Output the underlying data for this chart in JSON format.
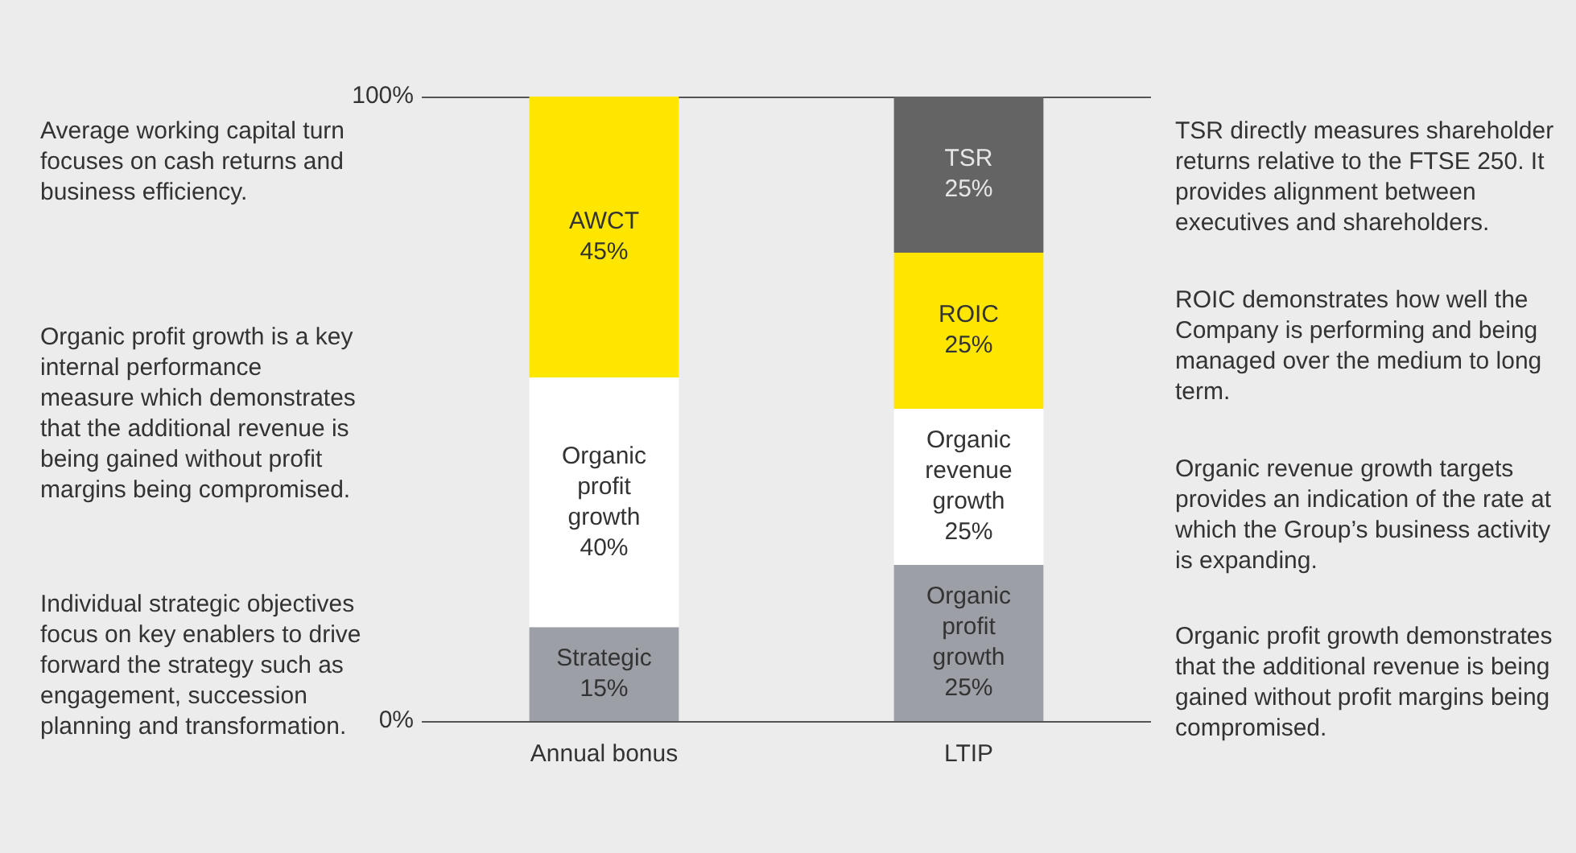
{
  "chart_data": {
    "type": "bar",
    "stacked": true,
    "categories": [
      "Annual bonus",
      "LTIP"
    ],
    "series": [
      {
        "colors": [
          "#9c9fa6",
          "#9c9fa6"
        ],
        "values": [
          0.15,
          0.25
        ],
        "value_labels": [
          "Strategic 15%",
          "Organic profit growth 25%"
        ]
      },
      {
        "colors": [
          "#ffffff",
          "#ffffff"
        ],
        "values": [
          0.4,
          0.25
        ],
        "value_labels": [
          "Organic profit growth 40%",
          "Organic revenue growth 25%"
        ]
      },
      {
        "colors": [
          "#ffe600",
          "#ffe600"
        ],
        "values": [
          0.45,
          0.25
        ],
        "value_labels": [
          "AWCT 45%",
          "ROIC 25%"
        ]
      },
      {
        "colors": [
          null,
          "#646464"
        ],
        "values": [
          null,
          0.25
        ],
        "value_labels": [
          null,
          "TSR 25%"
        ]
      }
    ],
    "ylim": [
      0,
      1
    ],
    "yticks": [
      {
        "value": 0,
        "label": "0%"
      },
      {
        "value": 1,
        "label": "100%"
      }
    ],
    "legend": false,
    "annotations": [
      "Average working capital turn focuses on cash returns and business efficiency.",
      "Organic profit growth is a key internal performance measure which demonstrates that the additional revenue is being gained without profit margins being compromised.",
      "Individual strategic objectives focus on key enablers to drive forward the strategy such as engagement, succession planning and transformation.",
      "TSR directly measures shareholder returns relative to the FTSE 250. It provides alignment between executives and shareholders.",
      "ROIC demonstrates how well the Company is performing and being managed over the medium to long term.",
      "Organic revenue growth targets provides an indication of the rate at which the Group’s business activity is expanding.",
      "Organic profit growth demonstrates that the additional revenue is being gained without profit margins being compromised."
    ]
  }
}
